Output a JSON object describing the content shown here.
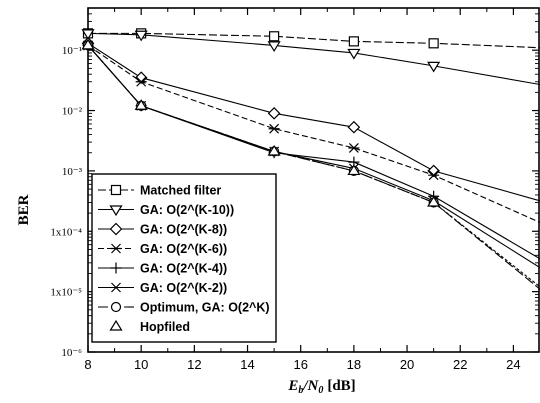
{
  "chart_data": {
    "type": "line",
    "xlabel": "E_b/N_0 [dB]",
    "xlabel_main": "E",
    "xlabel_sub1": "b",
    "xlabel_slash": "/N",
    "xlabel_sub2": "0",
    "xlabel_unit": "[dB]",
    "ylabel": "BER",
    "xlim": [
      8,
      25
    ],
    "ylim": [
      1e-06,
      0.5
    ],
    "yscale": "log",
    "xticks": [
      8,
      10,
      12,
      14,
      16,
      18,
      20,
      22,
      24
    ],
    "yticks": [
      {
        "value": 0.1,
        "label": "10⁻¹"
      },
      {
        "value": 0.01,
        "label": "10⁻²"
      },
      {
        "value": 0.001,
        "label": "10⁻³"
      },
      {
        "value": 0.0001,
        "label": "1x10⁻⁴"
      },
      {
        "value": 1e-05,
        "label": "1x10⁻⁵"
      },
      {
        "value": 1e-06,
        "label": "10⁻⁶"
      }
    ],
    "legend_position": "bottom-left",
    "series": [
      {
        "name": "Matched filter",
        "marker": "square",
        "dash": "8,3",
        "x": [
          8,
          10,
          15,
          18,
          21,
          25
        ],
        "y": [
          0.19,
          0.19,
          0.17,
          0.14,
          0.13,
          0.11
        ]
      },
      {
        "name": "GA: O(2^(K-10))",
        "marker": "triangle-down",
        "dash": "",
        "x": [
          8,
          10,
          15,
          18,
          21,
          25
        ],
        "y": [
          0.19,
          0.18,
          0.12,
          0.09,
          0.055,
          0.027
        ]
      },
      {
        "name": "GA: O(2^(K-8))",
        "marker": "diamond",
        "dash": "",
        "x": [
          8,
          10,
          15,
          18,
          21,
          25
        ],
        "y": [
          0.13,
          0.035,
          0.009,
          0.0053,
          0.001,
          0.00032
        ]
      },
      {
        "name": "GA: O(2^(K-6))",
        "marker": "asterisk",
        "dash": "6,3",
        "x": [
          8,
          10,
          15,
          18,
          21,
          25
        ],
        "y": [
          0.12,
          0.03,
          0.005,
          0.0024,
          0.00085,
          0.00014
        ]
      },
      {
        "name": "GA: O(2^(K-4))",
        "marker": "plus",
        "dash": "",
        "x": [
          8,
          10,
          15,
          18,
          21,
          25
        ],
        "y": [
          0.12,
          0.012,
          0.002,
          0.0014,
          0.00038,
          3.5e-05
        ]
      },
      {
        "name": "GA: O(2^(K-2))",
        "marker": "cross",
        "dash": "",
        "x": [
          8,
          10,
          15,
          18,
          21,
          25
        ],
        "y": [
          0.12,
          0.012,
          0.0021,
          0.0011,
          0.00032,
          2.5e-05
        ]
      },
      {
        "name": "Optimum, GA: O(2^K)",
        "marker": "circle",
        "dash": "10,3",
        "x": [
          8,
          10,
          15,
          18,
          21,
          25
        ],
        "y": [
          0.12,
          0.012,
          0.0021,
          0.001,
          0.0003,
          1.1e-05
        ]
      },
      {
        "name": "Hopfiled",
        "marker": "triangle-up",
        "dash": "3,2",
        "x": [
          8,
          10,
          15,
          18,
          21,
          25
        ],
        "y": [
          0.12,
          0.012,
          0.0021,
          0.001,
          0.0003,
          1.2e-05
        ]
      }
    ]
  }
}
